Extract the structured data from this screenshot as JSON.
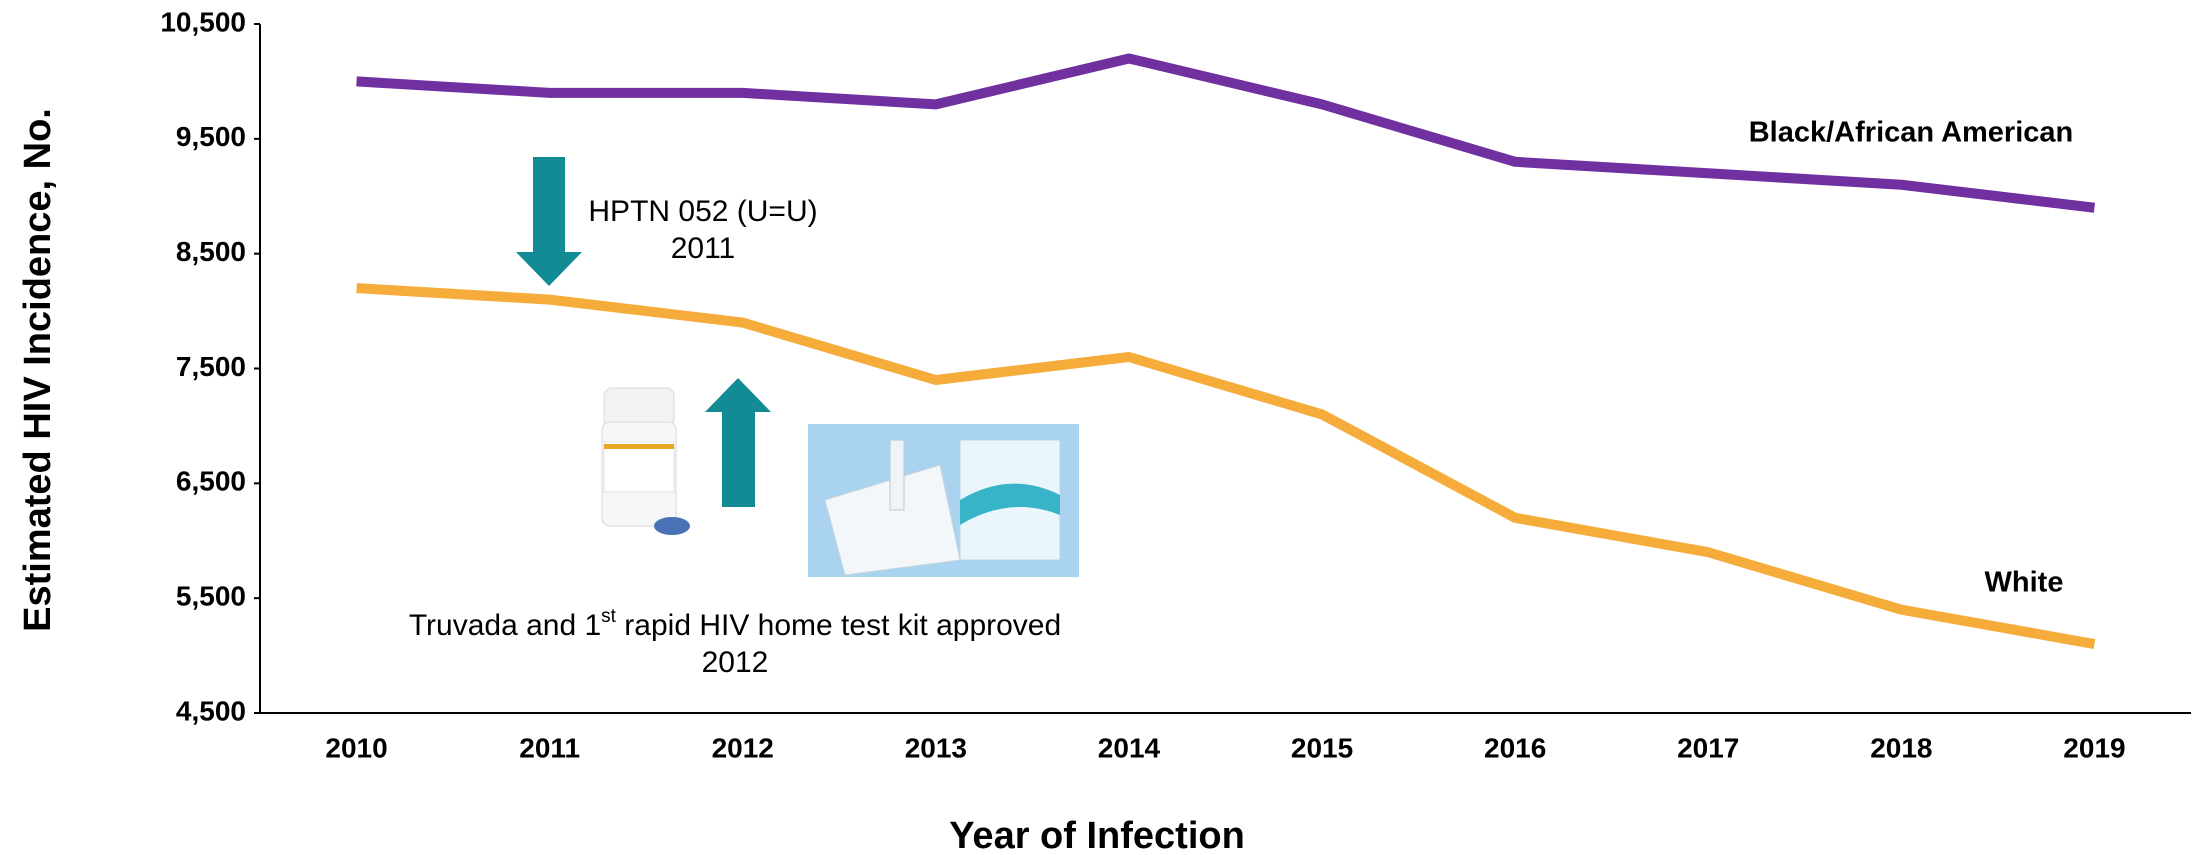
{
  "chart_data": {
    "type": "line",
    "x_label": "Year of Infection",
    "y_label": "Estimated HIV Incidence, No.",
    "categories": [
      "2010",
      "2011",
      "2012",
      "2013",
      "2014",
      "2015",
      "2016",
      "2017",
      "2018",
      "2019"
    ],
    "series": [
      {
        "name": "Black/African American",
        "color": "#7030a0",
        "values": [
          10000,
          9900,
          9900,
          9800,
          10200,
          9800,
          9300,
          9200,
          9100,
          8900
        ]
      },
      {
        "name": "White",
        "color": "#f5ac3b",
        "values": [
          8200,
          8100,
          7900,
          7400,
          7600,
          7100,
          6200,
          5900,
          5400,
          5100
        ]
      }
    ],
    "ylim": [
      4500,
      10500
    ],
    "yticks": [
      {
        "value": 4500,
        "label": "4,500"
      },
      {
        "value": 5500,
        "label": "5,500"
      },
      {
        "value": 6500,
        "label": "6,500"
      },
      {
        "value": 7500,
        "label": "7,500"
      },
      {
        "value": 8500,
        "label": "8,500"
      },
      {
        "value": 9500,
        "label": "9,500"
      },
      {
        "value": 10500,
        "label": "10,500"
      }
    ],
    "grid": false,
    "annotations": [
      {
        "lines": [
          "HPTN 052 (U=U)",
          "2011"
        ]
      },
      {
        "lines": [
          [
            "Truvada and 1",
            "st",
            " rapid HIV home test kit approved"
          ],
          "2012"
        ]
      }
    ]
  }
}
